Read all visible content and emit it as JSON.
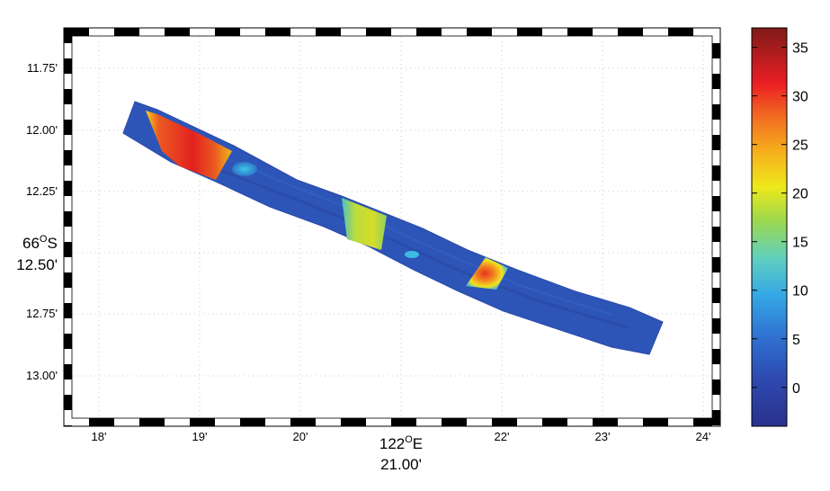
{
  "map": {
    "y_tick_labels": [
      "11.75'",
      "12.00'",
      "12.25'",
      "12.50'",
      "12.75'",
      "13.00'"
    ],
    "y_axis_label": "66",
    "y_axis_label_sup": "O",
    "y_axis_label_suffix": "S",
    "x_tick_labels": [
      "18'",
      "19'",
      "20'",
      "22'",
      "23'",
      "24'"
    ],
    "x_axis_label": "122",
    "x_axis_label_sup": "O",
    "x_axis_label_suffix": "E",
    "x_center_label": "21.00'",
    "colorbar": {
      "tick_labels": [
        "35",
        "30",
        "25",
        "20",
        "15",
        "10",
        "5",
        "0"
      ],
      "range": [
        -4,
        37
      ],
      "colors": [
        "#2a3990",
        "#2f5bc2",
        "#36a7e4",
        "#6fd0a8",
        "#c6e02a",
        "#f6e61a",
        "#f4921f",
        "#ec2024",
        "#8c1a1a"
      ]
    },
    "grid": "dotted"
  }
}
